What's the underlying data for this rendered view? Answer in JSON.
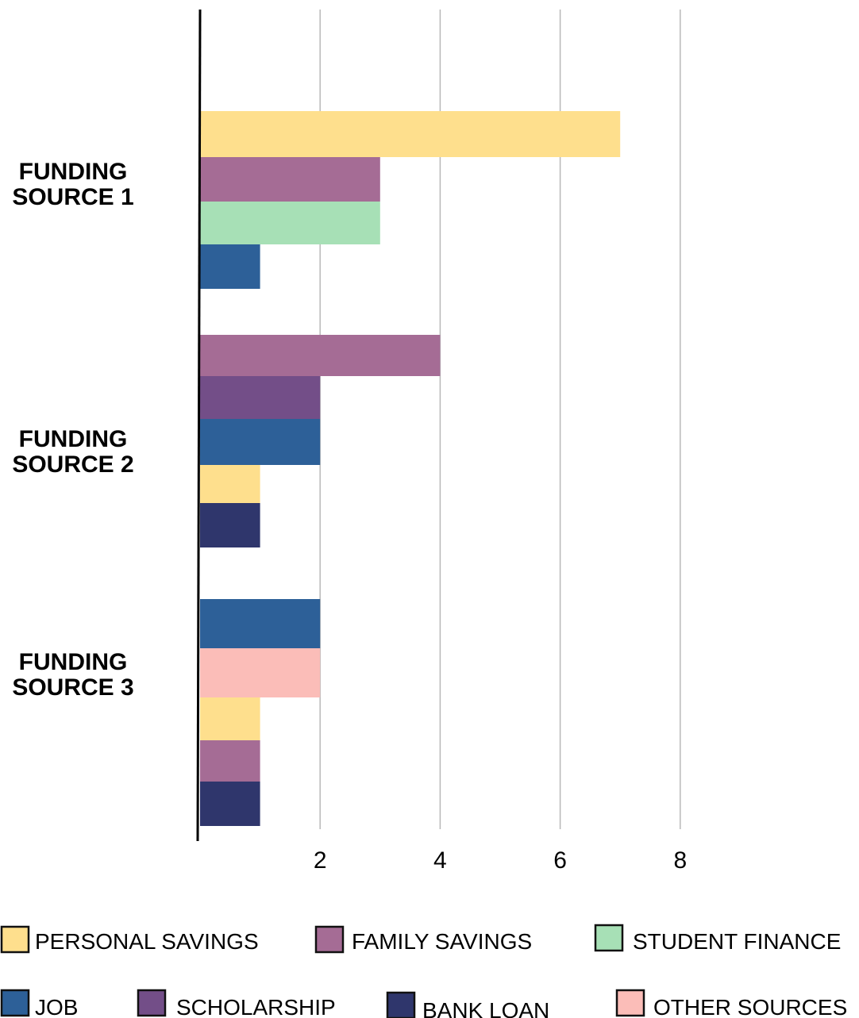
{
  "chart_data": {
    "type": "bar",
    "orientation": "horizontal",
    "categories": [
      "FUNDING SOURCE 1",
      "FUNDING SOURCE 2",
      "FUNDING SOURCE 3"
    ],
    "xlim": [
      0,
      8
    ],
    "xticks": [
      2,
      4,
      6,
      8
    ],
    "grid": true,
    "legend_position": "bottom",
    "groups": [
      {
        "category": "FUNDING SOURCE 1",
        "bars": [
          {
            "series": "PERSONAL SAVINGS",
            "value": 7
          },
          {
            "series": "FAMILY SAVINGS",
            "value": 3
          },
          {
            "series": "STUDENT FINANCE",
            "value": 3
          },
          {
            "series": "JOB",
            "value": 1
          }
        ]
      },
      {
        "category": "FUNDING SOURCE 2",
        "bars": [
          {
            "series": "FAMILY SAVINGS",
            "value": 4
          },
          {
            "series": "SCHOLARSHIP",
            "value": 2
          },
          {
            "series": "JOB",
            "value": 2
          },
          {
            "series": "PERSONAL SAVINGS",
            "value": 1
          },
          {
            "series": "BANK LOAN",
            "value": 1
          }
        ]
      },
      {
        "category": "FUNDING SOURCE 3",
        "bars": [
          {
            "series": "JOB",
            "value": 2
          },
          {
            "series": "OTHER SOURCES",
            "value": 2
          },
          {
            "series": "PERSONAL SAVINGS",
            "value": 1
          },
          {
            "series": "FAMILY SAVINGS",
            "value": 1
          },
          {
            "series": "BANK LOAN",
            "value": 1
          }
        ]
      }
    ],
    "series": [
      {
        "name": "PERSONAL SAVINGS",
        "color": "#FEDF8D"
      },
      {
        "name": "FAMILY SAVINGS",
        "color": "#A56C95"
      },
      {
        "name": "STUDENT FINANCE",
        "color": "#A7E0B6"
      },
      {
        "name": "JOB",
        "color": "#2D6098"
      },
      {
        "name": "SCHOLARSHIP",
        "color": "#734E88"
      },
      {
        "name": "BANK LOAN",
        "color": "#2F366C"
      },
      {
        "name": "OTHER SOURCES",
        "color": "#FBBDB8"
      }
    ]
  }
}
